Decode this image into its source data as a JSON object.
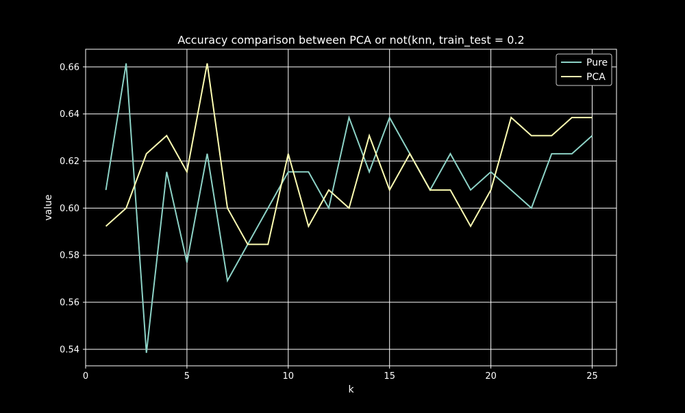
{
  "chart_data": {
    "type": "line",
    "title": "Accuracy comparison between PCA or not(knn, train_test = 0.2",
    "xlabel": "k",
    "ylabel": "value",
    "xlim": [
      0,
      26.2
    ],
    "ylim": [
      0.533,
      0.6675
    ],
    "xticks": [
      0,
      5,
      10,
      15,
      20,
      25
    ],
    "yticks": [
      0.54,
      0.56,
      0.58,
      0.6,
      0.62,
      0.64,
      0.66
    ],
    "xtick_labels": [
      "0",
      "5",
      "10",
      "15",
      "20",
      "25"
    ],
    "ytick_labels": [
      "0.54",
      "0.56",
      "0.58",
      "0.60",
      "0.62",
      "0.64",
      "0.66"
    ],
    "grid": true,
    "legend_position": "top-right",
    "x": [
      1,
      2,
      3,
      4,
      5,
      6,
      7,
      8,
      9,
      10,
      11,
      12,
      13,
      14,
      15,
      16,
      17,
      18,
      19,
      20,
      21,
      22,
      23,
      24,
      25
    ],
    "series": [
      {
        "name": "Pure",
        "color": "#8dd3c7",
        "values": [
          0.6077,
          0.6615,
          0.5385,
          0.6154,
          0.5769,
          0.6231,
          0.5692,
          0.5846,
          0.6,
          0.6154,
          0.6154,
          0.6,
          0.6385,
          0.6154,
          0.6385,
          0.6231,
          0.6077,
          0.6231,
          0.6077,
          0.6154,
          0.6077,
          0.6,
          0.6231,
          0.6231,
          0.6308
        ]
      },
      {
        "name": "PCA",
        "color": "#ffffb3",
        "values": [
          0.5923,
          0.6,
          0.6231,
          0.6308,
          0.6154,
          0.6615,
          0.6,
          0.5846,
          0.5846,
          0.6231,
          0.5923,
          0.6077,
          0.6,
          0.6308,
          0.6077,
          0.6231,
          0.6077,
          0.6077,
          0.5923,
          0.6077,
          0.6385,
          0.6308,
          0.6308,
          0.6385,
          0.6385
        ]
      }
    ]
  },
  "style": {
    "background": "#000000",
    "axis_color": "#ffffff",
    "grid_color": "#ffffff",
    "text_color": "#ffffff",
    "legend_bg": "#000000",
    "legend_border": "#cccccc"
  }
}
